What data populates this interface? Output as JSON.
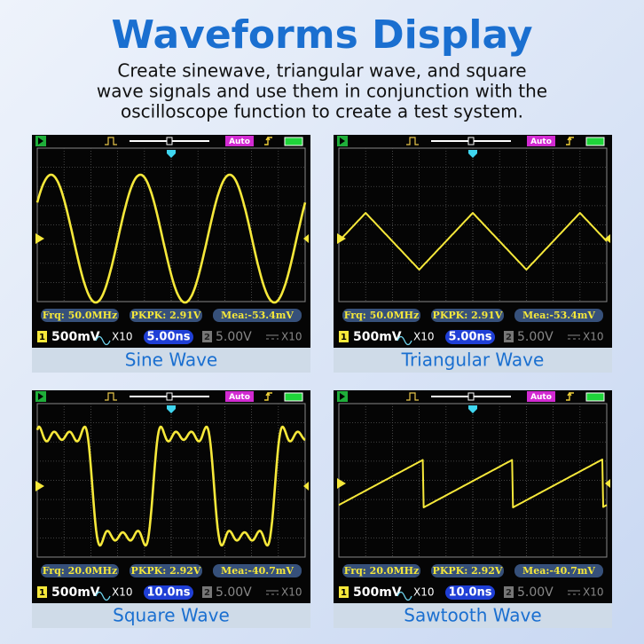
{
  "title": "Waveforms Display",
  "subtitle_lines": [
    "Create sinewave, triangular wave, and square",
    "wave signals and use them in conjunction with the",
    "oscilloscope function to create a test system."
  ],
  "panels": [
    {
      "caption": "Sine Wave",
      "trigger_mode": "Auto",
      "frequency": "Frq: 50.0MHz",
      "pkpk": "PKPK: 2.91V",
      "mean": "Mea:-53.4mV",
      "ch1_label": "1",
      "ch1_scale": "500mV",
      "ch1_probe": "X10",
      "timebase": "5.00ns",
      "ch2_label": "2",
      "ch2_scale": "5.00V",
      "ch2_probe": "X10"
    },
    {
      "caption": "Triangular Wave",
      "trigger_mode": "Auto",
      "frequency": "Frq: 50.0MHz",
      "pkpk": "PKPK: 2.91V",
      "mean": "Mea:-53.4mV",
      "ch1_label": "1",
      "ch1_scale": "500mV",
      "ch1_probe": "X10",
      "timebase": "5.00ns",
      "ch2_label": "2",
      "ch2_scale": "5.00V",
      "ch2_probe": "X10"
    },
    {
      "caption": "Square Wave",
      "trigger_mode": "Auto",
      "frequency": "Frq: 20.0MHz",
      "pkpk": "PKPK: 2.92V",
      "mean": "Mea:-40.7mV",
      "ch1_label": "1",
      "ch1_scale": "500mV",
      "ch1_probe": "X10",
      "timebase": "10.0ns",
      "ch2_label": "2",
      "ch2_scale": "5.00V",
      "ch2_probe": "X10"
    },
    {
      "caption": "Sawtooth Wave",
      "trigger_mode": "Auto",
      "frequency": "Frq: 20.0MHz",
      "pkpk": "PKPK: 2.92V",
      "mean": "Mea:-40.7mV",
      "ch1_label": "1",
      "ch1_scale": "500mV",
      "ch1_probe": "X10",
      "timebase": "10.0ns",
      "ch2_label": "2",
      "ch2_scale": "5.00V",
      "ch2_probe": "X10"
    }
  ]
}
